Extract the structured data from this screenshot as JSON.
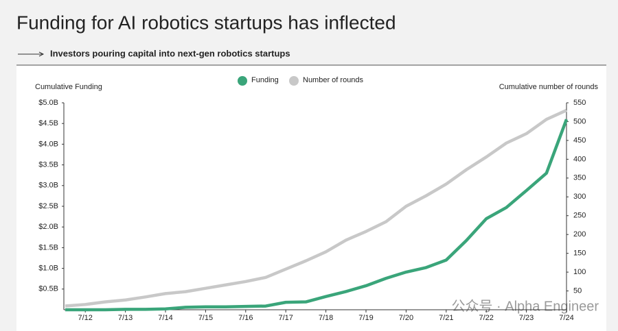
{
  "chart_data": {
    "type": "line",
    "title": "Funding for AI robotics startups has inflected",
    "subtitle": "Investors pouring capital into next-gen robotics startups",
    "y_axis_label": "Cumulative Funding",
    "y2_axis_label": "Cumulative number of rounds",
    "watermark": "公众号 · Alpha Engineer",
    "categories": [
      null,
      "7/12",
      null,
      "7/13",
      null,
      "7/14",
      null,
      "7/15",
      null,
      "7/16",
      null,
      "7/17",
      null,
      "7/18",
      null,
      "7/19",
      null,
      "7/20",
      null,
      "7/21",
      null,
      "7/22",
      null,
      "7/23",
      null,
      "7/24"
    ],
    "series": [
      {
        "name": "Funding",
        "color": "#3aa57a",
        "values": [
          0,
          0,
          0,
          0.01,
          0.01,
          0.02,
          0.06,
          0.07,
          0.07,
          0.08,
          0.09,
          0.18,
          0.19,
          0.32,
          0.44,
          0.58,
          0.76,
          0.91,
          1.02,
          1.2,
          1.67,
          2.2,
          2.47,
          2.88,
          3.3,
          4.6
        ]
      },
      {
        "name": "Number of rounds",
        "color": "#c8c8c8",
        "axis": "y2",
        "values": [
          10,
          14,
          21,
          26,
          34,
          43,
          48,
          57,
          66,
          75,
          86,
          108,
          130,
          154,
          185,
          208,
          234,
          275,
          303,
          334,
          372,
          406,
          443,
          468,
          506,
          530
        ]
      }
    ],
    "ylim": [
      0,
      5
    ],
    "yticks": [
      {
        "value": 0.5,
        "label": "$0.5B"
      },
      {
        "value": 1,
        "label": "$1.0B"
      },
      {
        "value": 1.5,
        "label": "$1.5B"
      },
      {
        "value": 2,
        "label": "$2.0B"
      },
      {
        "value": 2.5,
        "label": "$2.5B"
      },
      {
        "value": 3,
        "label": "$3.0B"
      },
      {
        "value": 3.5,
        "label": "$3.5B"
      },
      {
        "value": 4,
        "label": "$4.0B"
      },
      {
        "value": 4.5,
        "label": "$4.5B"
      },
      {
        "value": 5,
        "label": "$5.0B"
      }
    ],
    "y2lim": [
      0,
      550
    ],
    "y2ticks": [
      50,
      100,
      150,
      200,
      250,
      300,
      350,
      400,
      450,
      500,
      550
    ]
  }
}
